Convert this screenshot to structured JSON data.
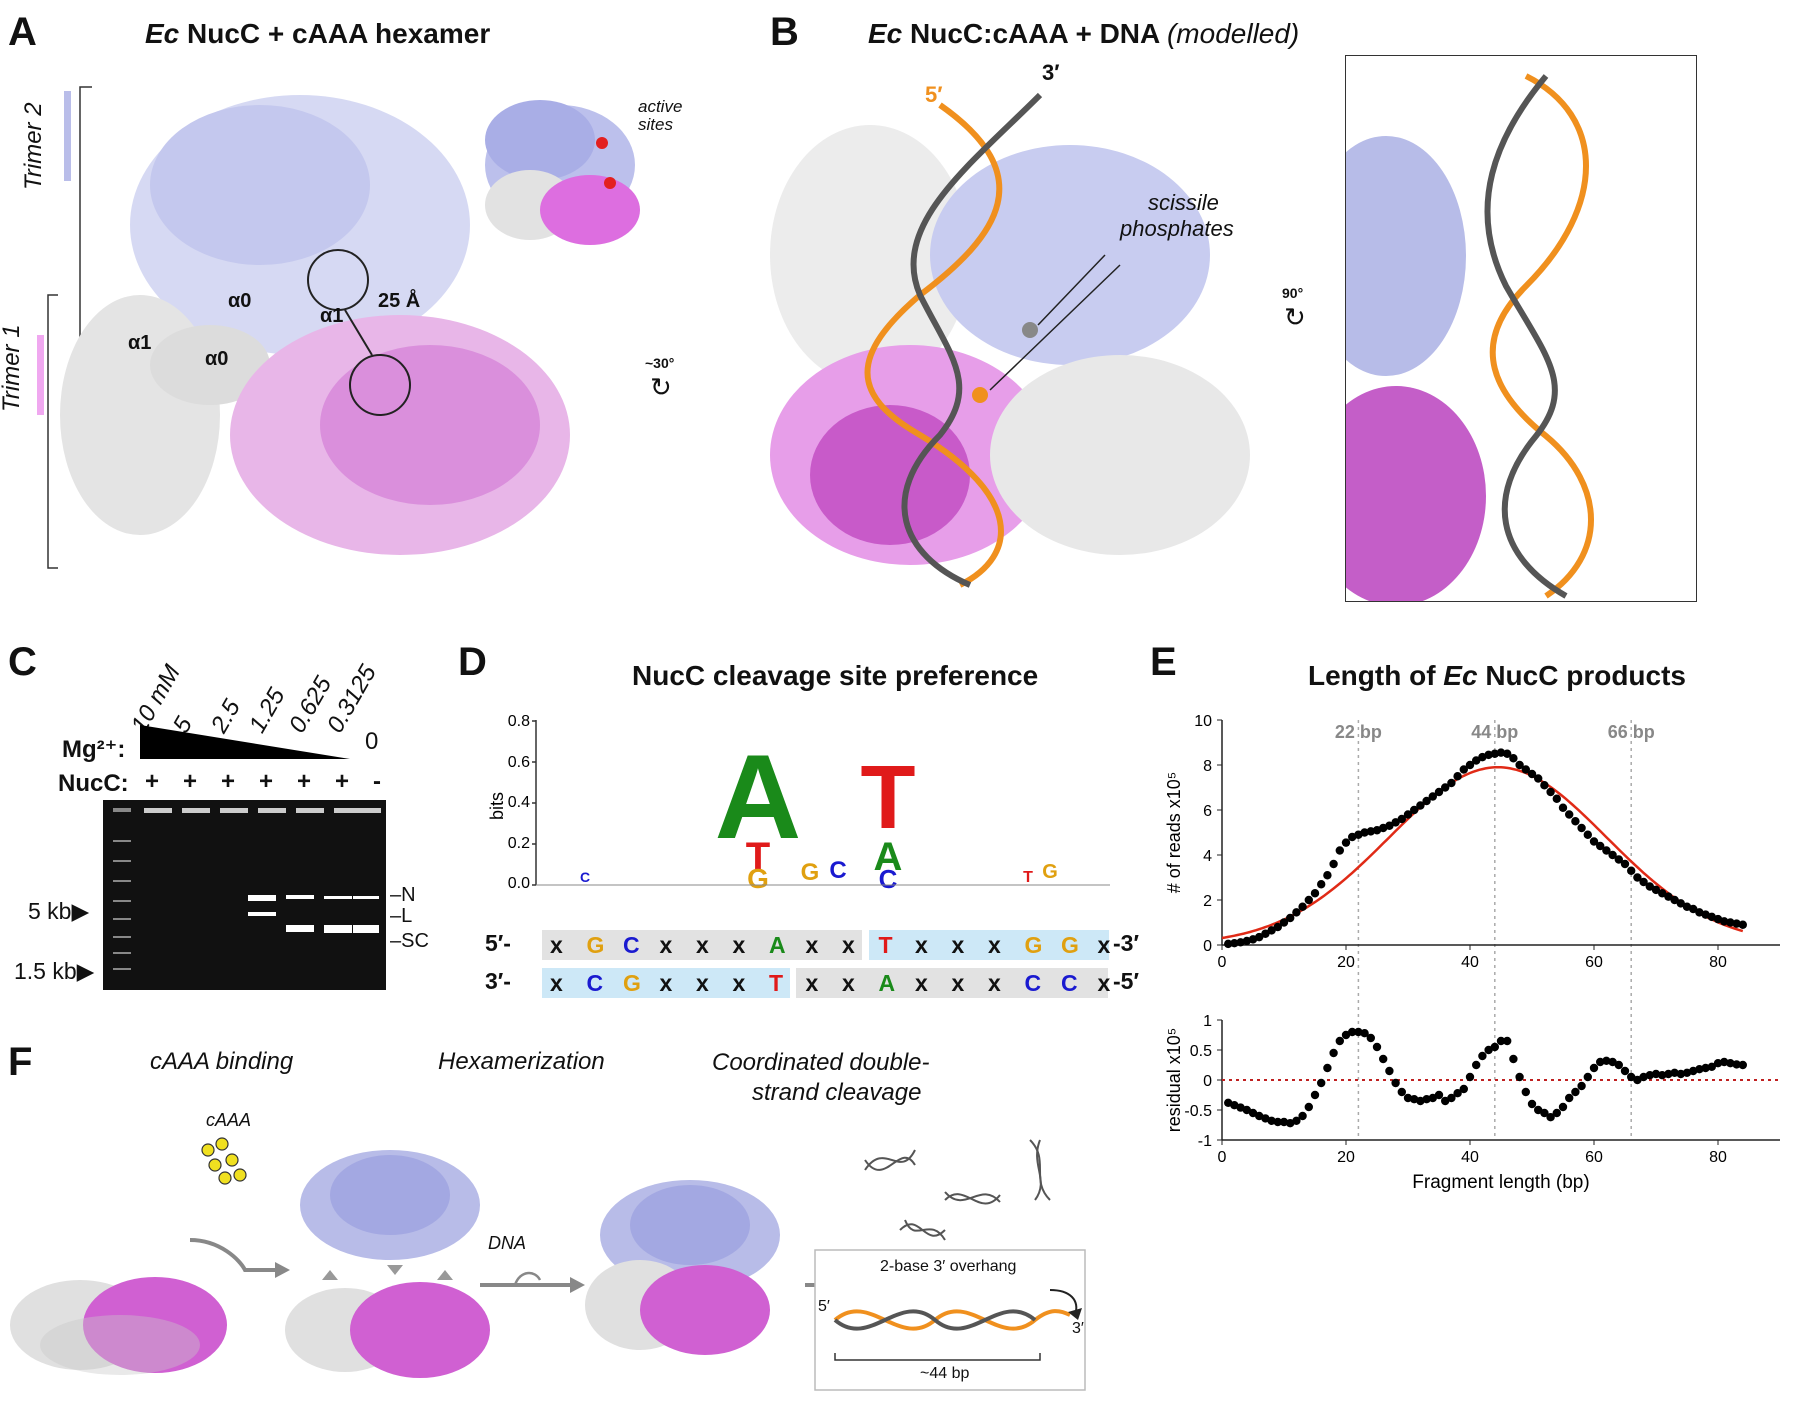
{
  "panels": {
    "A": {
      "letter": "A",
      "title_ec": "Ec",
      "title_rest": " NucC + cAAA hexamer",
      "trimer2": "Trimer 2",
      "trimer1": "Trimer 1",
      "alpha0_a": "α0",
      "alpha1_a": "α1",
      "alpha1_b": "α1",
      "alpha0_b": "α0",
      "distance": "25 Å",
      "active_sites_1": "active",
      "active_sites_2": "sites",
      "rotation": "~30°"
    },
    "B": {
      "letter": "B",
      "title_ec": "Ec",
      "title_rest": " NucC:cAAA + DNA ",
      "title_mod": "(modelled)",
      "five_prime": "5′",
      "three_prime": "3′",
      "scissile_1": "scissile",
      "scissile_2": "phosphates",
      "rotation": "90°"
    },
    "C": {
      "letter": "C",
      "mg_label": "Mg²⁺:",
      "nucc_label": "NucC:",
      "concentrations": [
        "10 mM",
        "5",
        "2.5",
        "1.25",
        "0.625",
        "0.3125",
        "0"
      ],
      "nucc_signs": [
        "+",
        "+",
        "+",
        "+",
        "+",
        "+",
        "-"
      ],
      "marker_5kb": "5 kb▶",
      "marker_15kb": "1.5 kb▶",
      "band_N": "–N",
      "band_L": "–L",
      "band_SC": "–SC"
    },
    "D": {
      "letter": "D",
      "title": "NucC cleavage site preference",
      "ylabel": "bits",
      "yticks": [
        "0.8",
        "0.6",
        "0.4",
        "0.2",
        "0.0"
      ],
      "strand1_left": "5′-",
      "strand1_right": "-3′",
      "strand2_left": "3′-",
      "strand2_right": "-5′",
      "strand1": [
        "x",
        "G",
        "C",
        "x",
        "x",
        "x",
        "A",
        "x",
        "x",
        "T",
        "x",
        "x",
        "x",
        "G",
        "G",
        "x"
      ],
      "strand2": [
        "x",
        "C",
        "G",
        "x",
        "x",
        "x",
        "T",
        "x",
        "x",
        "A",
        "x",
        "x",
        "x",
        "C",
        "C",
        "x"
      ]
    },
    "E": {
      "letter": "E",
      "title_pre": "Length of ",
      "title_ec": "Ec",
      "title_post": " NucC products",
      "ylabel_top": "# of reads x10⁵",
      "ylabel_bottom": "residual x10⁵",
      "xlabel": "Fragment length (bp)",
      "guide_labels": [
        "22 bp",
        "44 bp",
        "66 bp"
      ],
      "yticks_top": [
        "10",
        "8",
        "6",
        "4",
        "2",
        "0"
      ],
      "yticks_bottom": [
        "1",
        "0.5",
        "0",
        "-0.5",
        "-1"
      ],
      "xticks": [
        "0",
        "20",
        "40",
        "60",
        "80"
      ]
    },
    "F": {
      "letter": "F",
      "step1": "cAAA binding",
      "step2": "Hexamerization",
      "step3a": "Coordinated double-",
      "step3b": "strand cleavage",
      "cAAA": "cAAA",
      "dna": "DNA",
      "overhang": "2-base 3′ overhang",
      "five": "5′",
      "three": "3′",
      "length": "~44 bp"
    }
  },
  "chart_data": {
    "type": "scatter",
    "title": "Length of Ec NucC products",
    "xlabel": "Fragment length (bp)",
    "ylabel": "# of reads x10⁵",
    "xlim": [
      0,
      90
    ],
    "ylim": [
      0,
      10
    ],
    "guides_x": [
      22,
      44,
      66
    ],
    "fit": {
      "type": "gaussian",
      "peak_x": 44.5,
      "peak_y": 7.9,
      "sigma": 17.5
    },
    "x": [
      1,
      2,
      3,
      4,
      5,
      6,
      7,
      8,
      9,
      10,
      11,
      12,
      13,
      14,
      15,
      16,
      17,
      18,
      19,
      20,
      21,
      22,
      23,
      24,
      25,
      26,
      27,
      28,
      29,
      30,
      31,
      32,
      33,
      34,
      35,
      36,
      37,
      38,
      39,
      40,
      41,
      42,
      43,
      44,
      45,
      46,
      47,
      48,
      49,
      50,
      51,
      52,
      53,
      54,
      55,
      56,
      57,
      58,
      59,
      60,
      61,
      62,
      63,
      64,
      65,
      66,
      67,
      68,
      69,
      70,
      71,
      72,
      73,
      74,
      75,
      76,
      77,
      78,
      79,
      80,
      81,
      82,
      83,
      84
    ],
    "y": [
      0.05,
      0.08,
      0.12,
      0.18,
      0.25,
      0.35,
      0.5,
      0.65,
      0.8,
      1.0,
      1.2,
      1.45,
      1.7,
      2.0,
      2.3,
      2.7,
      3.1,
      3.6,
      4.2,
      4.55,
      4.8,
      4.9,
      5.0,
      5.05,
      5.1,
      5.2,
      5.3,
      5.45,
      5.6,
      5.8,
      6.0,
      6.2,
      6.4,
      6.6,
      6.8,
      7.0,
      7.2,
      7.5,
      7.8,
      8.0,
      8.2,
      8.35,
      8.45,
      8.5,
      8.55,
      8.5,
      8.3,
      8.0,
      7.8,
      7.6,
      7.4,
      7.1,
      6.8,
      6.5,
      6.1,
      5.8,
      5.5,
      5.2,
      4.9,
      4.6,
      4.4,
      4.2,
      4.0,
      3.8,
      3.6,
      3.3,
      3.0,
      2.8,
      2.6,
      2.45,
      2.3,
      2.15,
      2.0,
      1.85,
      1.7,
      1.6,
      1.45,
      1.35,
      1.25,
      1.15,
      1.05,
      1.0,
      0.95,
      0.9
    ],
    "residual": {
      "ylabel": "residual x10⁵",
      "ylim": [
        -1,
        1
      ],
      "x": [
        1,
        2,
        3,
        4,
        5,
        6,
        7,
        8,
        9,
        10,
        11,
        12,
        13,
        14,
        15,
        16,
        17,
        18,
        19,
        20,
        21,
        22,
        23,
        24,
        25,
        26,
        27,
        28,
        29,
        30,
        31,
        32,
        33,
        34,
        35,
        36,
        37,
        38,
        39,
        40,
        41,
        42,
        43,
        44,
        45,
        46,
        47,
        48,
        49,
        50,
        51,
        52,
        53,
        54,
        55,
        56,
        57,
        58,
        59,
        60,
        61,
        62,
        63,
        64,
        65,
        66,
        67,
        68,
        69,
        70,
        71,
        72,
        73,
        74,
        75,
        76,
        77,
        78,
        79,
        80,
        81,
        82,
        83,
        84
      ],
      "y": [
        -0.38,
        -0.42,
        -0.46,
        -0.5,
        -0.55,
        -0.6,
        -0.64,
        -0.68,
        -0.7,
        -0.7,
        -0.72,
        -0.68,
        -0.6,
        -0.45,
        -0.25,
        -0.05,
        0.2,
        0.45,
        0.65,
        0.75,
        0.8,
        0.8,
        0.78,
        0.7,
        0.55,
        0.35,
        0.15,
        -0.05,
        -0.2,
        -0.3,
        -0.32,
        -0.35,
        -0.32,
        -0.3,
        -0.25,
        -0.35,
        -0.3,
        -0.22,
        -0.15,
        0.05,
        0.25,
        0.4,
        0.5,
        0.55,
        0.65,
        0.65,
        0.35,
        0.05,
        -0.2,
        -0.4,
        -0.5,
        -0.55,
        -0.62,
        -0.55,
        -0.45,
        -0.3,
        -0.2,
        -0.1,
        0.05,
        0.2,
        0.3,
        0.32,
        0.3,
        0.25,
        0.15,
        0.05,
        0.0,
        0.05,
        0.08,
        0.1,
        0.08,
        0.1,
        0.12,
        0.1,
        0.12,
        0.15,
        0.18,
        0.2,
        0.22,
        0.28,
        0.3,
        0.28,
        0.26,
        0.25
      ]
    }
  },
  "colors": {
    "lavender": "#b9bde9",
    "magenta": "#cf5fd0",
    "orange": "#f0901e",
    "dna_gray": "#555555",
    "fit_red": "#e02a16",
    "highlight_blue": "#cde8f7",
    "highlight_gray": "#e2e2e2",
    "A": "#1a8a1a",
    "T": "#e01a1a",
    "G": "#e0a010",
    "C": "#1a1ad0"
  }
}
